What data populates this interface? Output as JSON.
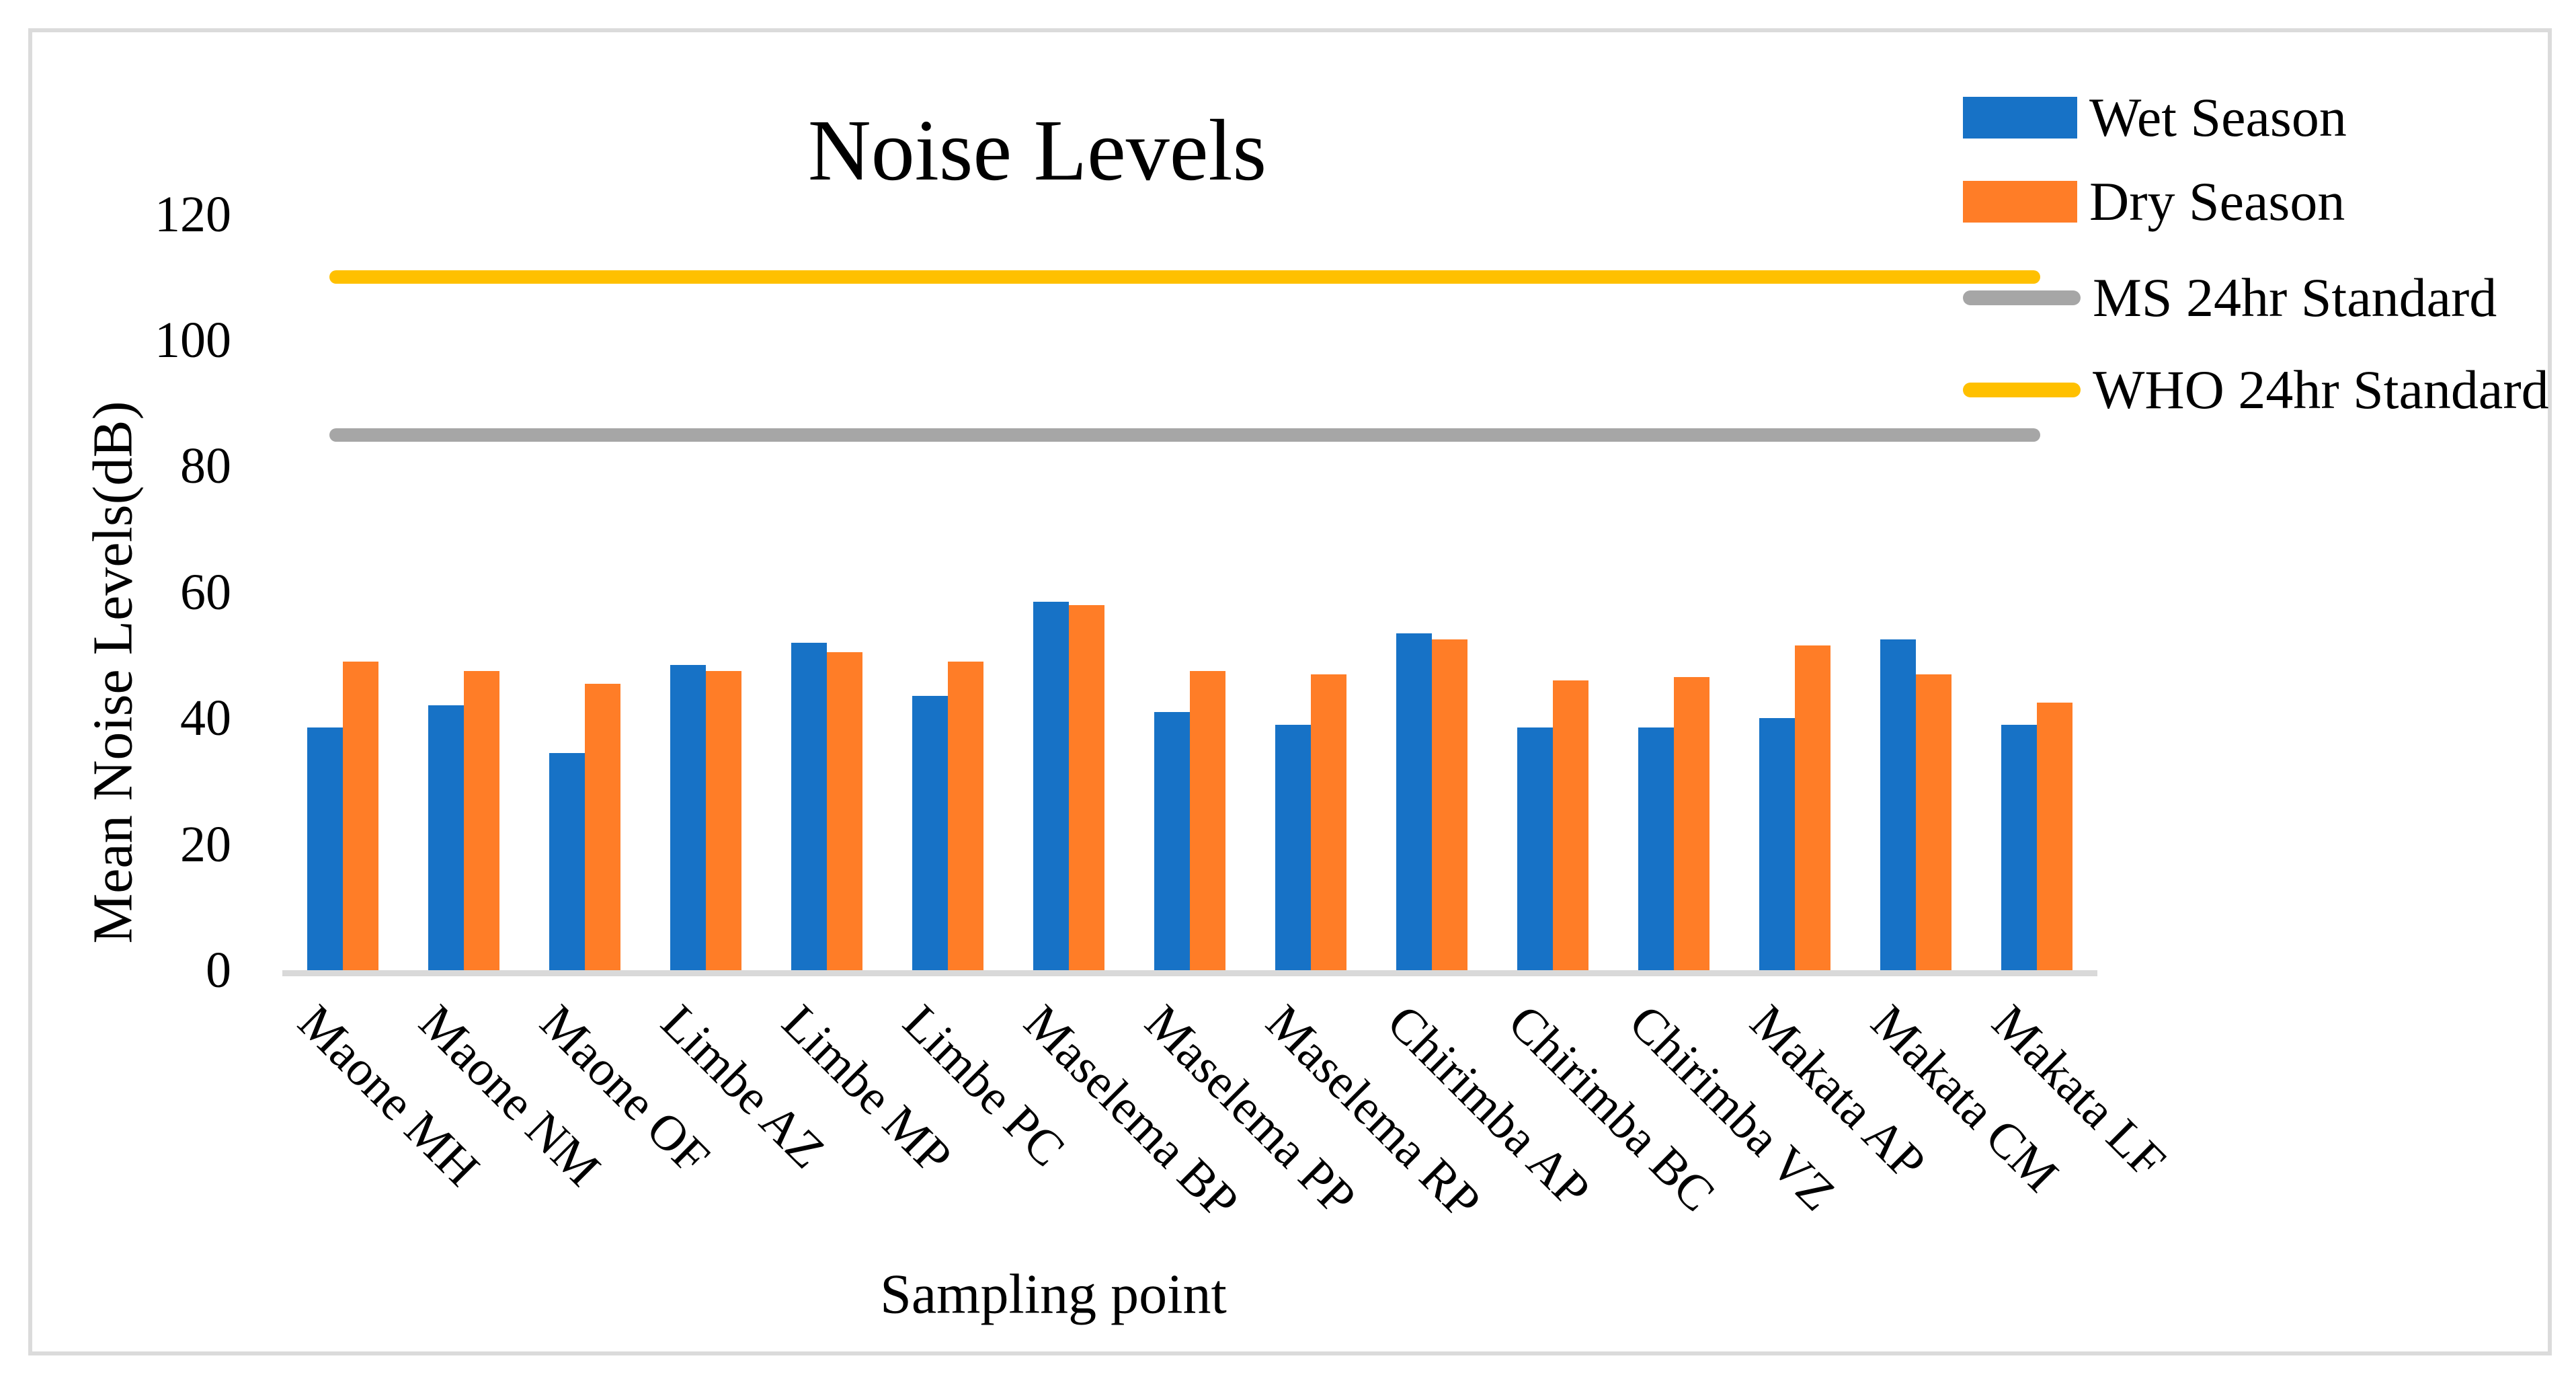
{
  "legend": [
    {
      "label": "Wet Season",
      "marker": "rect",
      "color": "#1772C6"
    },
    {
      "label": "Dry Season",
      "marker": "rect",
      "color": "#FF7D27"
    },
    {
      "label": "MS 24hr Standard",
      "marker": "line",
      "color": "#A6A6A6"
    },
    {
      "label": "WHO 24hr Standard",
      "marker": "line",
      "color": "#FFC000"
    }
  ],
  "chart_data": {
    "type": "bar",
    "title": "Noise Levels",
    "xlabel": "Sampling point",
    "ylabel": "Mean Noise Levels(dB)",
    "ylim": [
      0,
      120
    ],
    "ytick_interval": 20,
    "grid": false,
    "legend_position": "top-right",
    "categories": [
      "Maone MH",
      "Maone NM",
      "Maone OF",
      "Limbe AZ",
      "Limbe MP",
      "Limbe PC",
      "Maselema BP",
      "Maselema PP",
      "Maselema RP",
      "Chirimba AP",
      "Chirimba BC",
      "Chirimba VZ",
      "Makata AP",
      "Makata CM",
      "Makata LF"
    ],
    "series": [
      {
        "name": "Wet Season",
        "color": "#1772C6",
        "values": [
          38.5,
          42,
          34.5,
          48.5,
          52,
          43.5,
          58.5,
          41,
          39,
          53.5,
          38.5,
          38.5,
          40,
          52.5,
          39
        ]
      },
      {
        "name": "Dry Season",
        "color": "#FF7D27",
        "values": [
          49,
          47.5,
          45.5,
          47.5,
          50.5,
          49,
          58,
          47.5,
          47,
          52.5,
          46,
          46.5,
          51.5,
          47,
          42.5
        ]
      }
    ],
    "reference_lines": [
      {
        "name": "MS 24hr Standard",
        "value": 85,
        "color": "#A6A6A6"
      },
      {
        "name": "WHO 24hr Standard",
        "value": 110,
        "color": "#FFC000"
      }
    ]
  }
}
